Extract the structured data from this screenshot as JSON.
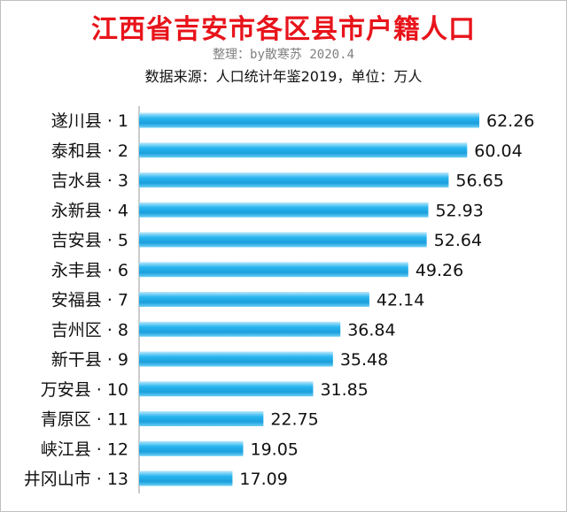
{
  "chart_data": {
    "type": "bar",
    "orientation": "horizontal",
    "title": "江西省吉安市各区县市户籍人口",
    "subtitle": "整理：by散寒苏 2020.4",
    "source": "数据来源：人口统计年鉴2019，单位：万人",
    "categories": [
      "遂川县 · 1",
      "泰和县 · 2",
      "吉水县 · 3",
      "永新县 · 4",
      "吉安县 · 5",
      "永丰县 · 6",
      "安福县 · 7",
      "吉州区 · 8",
      "新干县 · 9",
      "万安县 · 10",
      "青原区 · 11",
      "峡江县 · 12",
      "井冈山市 · 13"
    ],
    "values": [
      62.26,
      60.04,
      56.65,
      52.93,
      52.64,
      49.26,
      42.14,
      36.84,
      35.48,
      31.85,
      22.75,
      19.05,
      17.09
    ],
    "value_labels": [
      "62.26",
      "60.04",
      "56.65",
      "52.93",
      "52.64",
      "49.26",
      "42.14",
      "36.84",
      "35.48",
      "31.85",
      "22.75",
      "19.05",
      "17.09"
    ],
    "xlim": [
      0,
      62.26
    ],
    "grid": false,
    "bar_color": "#29b6f0"
  }
}
